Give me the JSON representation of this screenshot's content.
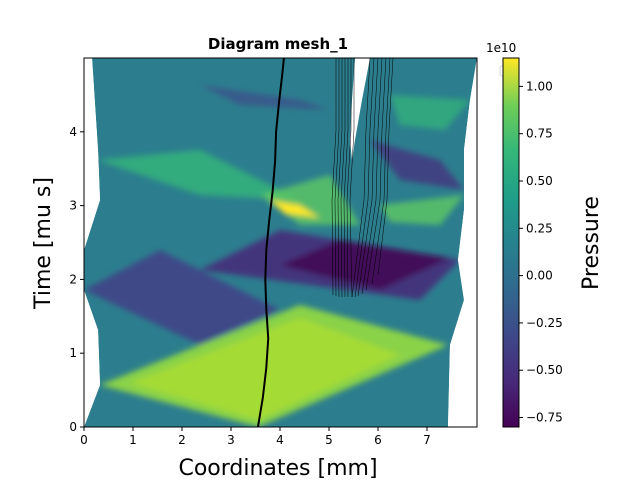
{
  "chart_data": {
    "type": "heatmap",
    "title": "Diagram mesh_1",
    "xlabel": "Coordinates [mm]",
    "ylabel": "Time [mu s]",
    "xlim": [
      0,
      8
    ],
    "ylim": [
      0,
      5
    ],
    "x_ticks": [
      "0",
      "1",
      "2",
      "3",
      "4",
      "5",
      "6",
      "7"
    ],
    "y_ticks": [
      "0",
      "1",
      "2",
      "3",
      "4"
    ],
    "colorbar": {
      "label": "Pressure",
      "offset_text": "1e10",
      "range": [
        -0.8,
        1.15
      ],
      "ticks": [
        "−0.75",
        "−0.50",
        "−0.25",
        "0.00",
        "0.25",
        "0.50",
        "0.75",
        "1.00"
      ],
      "colormap": "viridis"
    },
    "grid": false,
    "legend": "top-left (empty)",
    "interface_line": [
      [
        3.55,
        0.0
      ],
      [
        3.65,
        0.4
      ],
      [
        3.72,
        0.8
      ],
      [
        3.76,
        1.2
      ],
      [
        3.72,
        1.6
      ],
      [
        3.7,
        2.0
      ],
      [
        3.72,
        2.4
      ],
      [
        3.78,
        2.8
      ],
      [
        3.85,
        3.2
      ],
      [
        3.9,
        3.6
      ],
      [
        3.92,
        4.0
      ],
      [
        3.98,
        4.4
      ],
      [
        4.05,
        4.8
      ],
      [
        4.08,
        5.0
      ]
    ]
  },
  "colors": {
    "background": "#ffffff",
    "high": "#b5de2b",
    "low": "#440154",
    "mid": "#21908d",
    "line": "#000000"
  }
}
